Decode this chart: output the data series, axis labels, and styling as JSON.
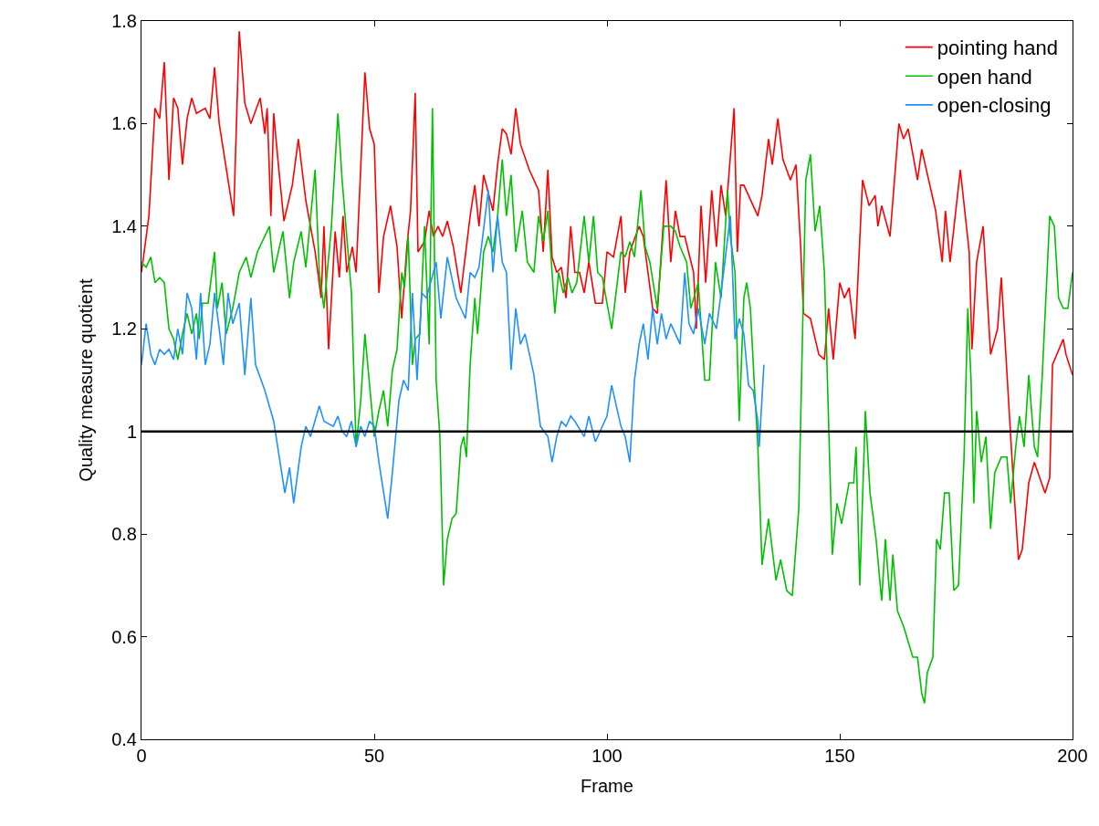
{
  "chart_data": {
    "type": "line",
    "xlabel": "Frame",
    "ylabel": "Quality measure quotient",
    "xlim": [
      0,
      200
    ],
    "xticks": [
      0,
      50,
      100,
      150,
      200
    ],
    "ylim": [
      0.4,
      1.8
    ],
    "yticks": [
      0.4,
      0.6,
      0.8,
      1,
      1.2,
      1.4,
      1.6,
      1.8
    ],
    "legend": "top right",
    "marker": "none",
    "line_style": "solid",
    "ref_lines": [
      {
        "axis": "y",
        "value": 1,
        "color": "#000000"
      }
    ],
    "series": [
      {
        "name": "pointing hand",
        "color": "#ff0000",
        "x": [
          0,
          1.6,
          2.9,
          3.9,
          4.9,
          5.9,
          6.9,
          7.8,
          8.8,
          9.8,
          10.8,
          11.8,
          13.7,
          14.7,
          15.7,
          16.7,
          18.6,
          19.8,
          21,
          22.2,
          23.5,
          25.5,
          26.5,
          27,
          27.8,
          28.4,
          29.4,
          30.6,
          32.4,
          33.7,
          35.3,
          37.3,
          38.6,
          39.2,
          40.2,
          41.6,
          42.5,
          43.3,
          44.1,
          45.3,
          46.1,
          48,
          49,
          50,
          51,
          52,
          53.5,
          54.9,
          55.9,
          57,
          57.8,
          58.8,
          59.4,
          60.8,
          61.8,
          62.7,
          63.7,
          64.7,
          65.7,
          67,
          68.6,
          70.6,
          71.6,
          72.5,
          73.5,
          75.5,
          76.5,
          77.5,
          78.4,
          79.4,
          80.4,
          81.4,
          83.3,
          85.3,
          86.3,
          87.3,
          88.2,
          89.2,
          90.2,
          91.2,
          92.2,
          93.1,
          94.1,
          95.1,
          96.1,
          97.5,
          99,
          100,
          101.4,
          103,
          103.9,
          104.9,
          106.9,
          107.8,
          109.8,
          110.8,
          112.7,
          113.7,
          114.7,
          115.7,
          116.7,
          118.6,
          119.2,
          120.2,
          121.2,
          122.5,
          123.5,
          124.5,
          125.5,
          127.3,
          128,
          128.7,
          129.4,
          130.4,
          132.4,
          133.3,
          134.7,
          135.5,
          136.7,
          137.8,
          139.4,
          140.6,
          141.6,
          142.2,
          143.7,
          145.5,
          146.7,
          147.6,
          148.6,
          150,
          151,
          152,
          153.3,
          154.9,
          156.3,
          157.6,
          158.2,
          159,
          160.8,
          162.7,
          163.7,
          164.7,
          166.7,
          167.6,
          170.6,
          172,
          172.7,
          173.7,
          175.9,
          177.8,
          178.4,
          179.4,
          180.8,
          182.4,
          183.9,
          184.7,
          187.3,
          188.4,
          189.2,
          190.6,
          191.8,
          194.1,
          195.1,
          195.7,
          198,
          198.6,
          200
        ],
        "values": [
          1.31,
          1.42,
          1.63,
          1.61,
          1.72,
          1.49,
          1.65,
          1.63,
          1.52,
          1.61,
          1.65,
          1.62,
          1.63,
          1.61,
          1.71,
          1.6,
          1.49,
          1.42,
          1.78,
          1.64,
          1.6,
          1.65,
          1.58,
          1.63,
          1.42,
          1.62,
          1.52,
          1.41,
          1.48,
          1.57,
          1.45,
          1.35,
          1.26,
          1.4,
          1.16,
          1.39,
          1.3,
          1.42,
          1.31,
          1.36,
          1.31,
          1.7,
          1.59,
          1.56,
          1.27,
          1.38,
          1.44,
          1.36,
          1.22,
          1.36,
          1.43,
          1.66,
          1.35,
          1.37,
          1.43,
          1.38,
          1.4,
          1.38,
          1.41,
          1.36,
          1.27,
          1.42,
          1.48,
          1.4,
          1.5,
          1.43,
          1.52,
          1.59,
          1.58,
          1.54,
          1.63,
          1.56,
          1.51,
          1.47,
          1.35,
          1.51,
          1.34,
          1.31,
          1.32,
          1.26,
          1.4,
          1.31,
          1.31,
          1.27,
          1.33,
          1.25,
          1.25,
          1.35,
          1.34,
          1.42,
          1.27,
          1.35,
          1.4,
          1.38,
          1.24,
          1.23,
          1.49,
          1.33,
          1.43,
          1.38,
          1.38,
          1.31,
          1.2,
          1.44,
          1.29,
          1.47,
          1.36,
          1.48,
          1.42,
          1.63,
          1.35,
          1.48,
          1.48,
          1.46,
          1.42,
          1.46,
          1.57,
          1.52,
          1.61,
          1.53,
          1.49,
          1.52,
          1.36,
          1.23,
          1.22,
          1.15,
          1.14,
          1.24,
          1.14,
          1.29,
          1.26,
          1.28,
          1.18,
          1.49,
          1.44,
          1.46,
          1.4,
          1.44,
          1.38,
          1.6,
          1.57,
          1.59,
          1.49,
          1.55,
          1.43,
          1.33,
          1.43,
          1.33,
          1.51,
          1.35,
          1.16,
          1.33,
          1.4,
          1.15,
          1.2,
          1.3,
          0.9,
          0.75,
          0.77,
          0.9,
          0.94,
          0.88,
          0.91,
          1.13,
          1.18,
          1.15,
          1.11
        ]
      },
      {
        "name": "open hand",
        "color": "#00c000",
        "x": [
          0,
          1,
          2,
          2.9,
          3.9,
          4.9,
          5.9,
          6.9,
          7.8,
          8.8,
          9.8,
          10.8,
          11.8,
          12.4,
          13.1,
          14.3,
          15.7,
          16.3,
          17.3,
          18.2,
          19.6,
          21,
          22.5,
          23.5,
          24.9,
          27.5,
          28.4,
          30.4,
          31.8,
          32.7,
          34.3,
          35.3,
          37.3,
          38.2,
          39.2,
          40.8,
          42.2,
          43.1,
          44.1,
          45.1,
          46.1,
          47.1,
          48,
          49,
          50,
          51,
          52,
          52.9,
          53.9,
          54.9,
          55.9,
          56.5,
          57.3,
          58.2,
          58.8,
          59.8,
          60.8,
          61.8,
          62.5,
          63.3,
          64.1,
          64.9,
          65.7,
          66.7,
          67.6,
          68.6,
          69.2,
          69.8,
          70.6,
          71.6,
          72.2,
          73.5,
          74.5,
          75.5,
          76.5,
          77.5,
          78.4,
          79.4,
          80.4,
          81.8,
          82.9,
          84.3,
          85.3,
          86.3,
          87.3,
          88.8,
          89.6,
          90.6,
          91.6,
          92.5,
          93.5,
          95.1,
          96.1,
          97.1,
          98,
          99,
          101,
          103,
          103.9,
          104.9,
          105.9,
          107.3,
          108.2,
          109.2,
          110.8,
          112.2,
          113.7,
          114.7,
          115.7,
          117.1,
          118,
          119.6,
          121,
          122,
          123.3,
          124.5,
          125.9,
          126.5,
          127.5,
          128.4,
          129.4,
          130,
          130.8,
          131.6,
          132.4,
          133.3,
          134.7,
          136.3,
          137.3,
          138.6,
          139.8,
          141.2,
          142.7,
          143.7,
          144.7,
          145.7,
          146.7,
          148.4,
          149.4,
          150.4,
          152,
          153,
          153.5,
          154.3,
          155.5,
          156.5,
          157.8,
          159,
          159.8,
          160.8,
          161.4,
          162.4,
          163.7,
          165.7,
          166.7,
          167.6,
          168.2,
          168.8,
          170,
          170.8,
          171.6,
          172.5,
          173.5,
          174.5,
          175.5,
          176.7,
          177.5,
          178.2,
          178.8,
          179.4,
          180.4,
          181.4,
          182.4,
          183.3,
          184.7,
          185.9,
          186.7,
          187.8,
          188.6,
          189.6,
          190.6,
          191.8,
          192.5,
          193.5,
          195.1,
          196.1,
          197,
          198,
          199,
          200
        ],
        "values": [
          1.33,
          1.32,
          1.34,
          1.29,
          1.3,
          1.29,
          1.2,
          1.18,
          1.14,
          1.19,
          1.23,
          1.19,
          1.23,
          1.18,
          1.25,
          1.25,
          1.35,
          1.24,
          1.29,
          1.19,
          1.24,
          1.31,
          1.34,
          1.3,
          1.35,
          1.4,
          1.31,
          1.39,
          1.26,
          1.33,
          1.39,
          1.32,
          1.51,
          1.31,
          1.24,
          1.4,
          1.62,
          1.49,
          1.38,
          1.27,
          0.97,
          1.06,
          1.19,
          1.09,
          0.99,
          1.04,
          1.08,
          1.01,
          1.12,
          1.16,
          1.31,
          1.28,
          1.38,
          1.13,
          1.18,
          1.19,
          1.4,
          1.17,
          1.63,
          1.1,
          0.99,
          0.7,
          0.79,
          0.83,
          0.84,
          0.97,
          0.99,
          0.95,
          1.13,
          1.26,
          1.19,
          1.35,
          1.38,
          1.35,
          1.42,
          1.53,
          1.42,
          1.5,
          1.35,
          1.43,
          1.33,
          1.31,
          1.42,
          1.37,
          1.43,
          1.23,
          1.31,
          1.27,
          1.3,
          1.27,
          1.29,
          1.42,
          1.33,
          1.42,
          1.31,
          1.3,
          1.2,
          1.35,
          1.34,
          1.37,
          1.34,
          1.47,
          1.36,
          1.33,
          1.24,
          1.4,
          1.4,
          1.39,
          1.36,
          1.33,
          1.24,
          1.29,
          1.1,
          1.1,
          1.33,
          1.26,
          1.47,
          1.38,
          1.31,
          1.02,
          1.26,
          1.29,
          1.24,
          1.1,
          0.97,
          0.74,
          0.83,
          0.71,
          0.75,
          0.69,
          0.68,
          0.85,
          1.49,
          1.54,
          1.39,
          1.44,
          1.31,
          0.76,
          0.86,
          0.82,
          0.9,
          0.9,
          0.97,
          0.7,
          1.04,
          0.88,
          0.79,
          0.67,
          0.79,
          0.67,
          0.76,
          0.65,
          0.62,
          0.56,
          0.56,
          0.49,
          0.47,
          0.53,
          0.56,
          0.79,
          0.77,
          0.88,
          0.88,
          0.69,
          0.7,
          0.95,
          1.24,
          1.1,
          0.86,
          1.04,
          0.94,
          0.99,
          0.81,
          0.92,
          0.95,
          0.95,
          0.86,
          0.97,
          1.03,
          0.97,
          1.11,
          0.97,
          0.95,
          1.11,
          1.42,
          1.4,
          1.26,
          1.24,
          1.24,
          1.31
        ]
      },
      {
        "name": "open-closing",
        "color": "#1e90ff",
        "x": [
          0,
          1,
          2,
          2.9,
          3.9,
          4.9,
          5.9,
          6.9,
          7.8,
          8.8,
          9.8,
          10.8,
          11.8,
          12.7,
          13.7,
          14.7,
          15.7,
          16.7,
          17.6,
          18.6,
          19.6,
          21,
          22.2,
          23.5,
          24.5,
          26.5,
          28.4,
          30.8,
          31.8,
          32.7,
          34.3,
          35.3,
          36.3,
          38.2,
          39.2,
          41.2,
          42.2,
          43.1,
          44.1,
          45.1,
          46.1,
          47.1,
          48,
          49,
          50,
          51,
          52.9,
          53.9,
          55.3,
          56.3,
          57.3,
          58.2,
          59.2,
          60.2,
          61.2,
          63.3,
          64.3,
          65.7,
          67.6,
          69.6,
          70.6,
          71.6,
          72.5,
          74.5,
          75.5,
          76.5,
          77.5,
          78.4,
          79.4,
          80.4,
          81.4,
          82.4,
          84.3,
          85.7,
          87.3,
          88.2,
          89.2,
          90.2,
          91.2,
          92.2,
          93.1,
          95.1,
          96.1,
          97.5,
          100,
          101,
          103,
          103.9,
          104.9,
          105.9,
          106.9,
          107.8,
          108.8,
          109.8,
          110.8,
          111.7,
          112.7,
          113.7,
          114.7,
          115.7,
          116.7,
          117.6,
          118.6,
          119.6,
          121,
          122,
          123.5,
          124.5,
          126.5,
          127.5,
          128.4,
          129.4,
          130.4,
          131.4,
          132.4,
          132.7,
          133.7
        ],
        "values": [
          1.13,
          1.21,
          1.15,
          1.13,
          1.16,
          1.15,
          1.16,
          1.14,
          1.2,
          1.15,
          1.27,
          1.24,
          1.14,
          1.27,
          1.13,
          1.17,
          1.27,
          1.2,
          1.13,
          1.27,
          1.21,
          1.25,
          1.11,
          1.26,
          1.13,
          1.08,
          1.02,
          0.88,
          0.93,
          0.86,
          0.97,
          1.01,
          0.99,
          1.05,
          1.02,
          1.01,
          1.03,
          1,
          0.99,
          1.02,
          0.97,
          1.01,
          0.99,
          1.02,
          1.01,
          0.94,
          0.83,
          0.92,
          1.06,
          1.1,
          1.08,
          1.27,
          1.1,
          1.27,
          1.26,
          1.33,
          1.22,
          1.34,
          1.26,
          1.22,
          1.31,
          1.3,
          1.32,
          1.47,
          1.31,
          1.42,
          1.33,
          1.31,
          1.12,
          1.24,
          1.17,
          1.19,
          1.11,
          1.01,
          0.99,
          0.94,
          0.99,
          1.02,
          1.01,
          1.03,
          1.02,
          0.99,
          1.03,
          0.98,
          1.03,
          1.09,
          1.01,
          0.99,
          0.94,
          1.1,
          1.17,
          1.21,
          1.14,
          1.24,
          1.17,
          1.23,
          1.18,
          1.21,
          1.19,
          1.17,
          1.31,
          1.21,
          1.19,
          1.24,
          1.17,
          1.23,
          1.2,
          1.27,
          1.42,
          1.18,
          1.22,
          1.19,
          1.09,
          1.08,
          1.02,
          0.97,
          1.13
        ]
      }
    ]
  }
}
